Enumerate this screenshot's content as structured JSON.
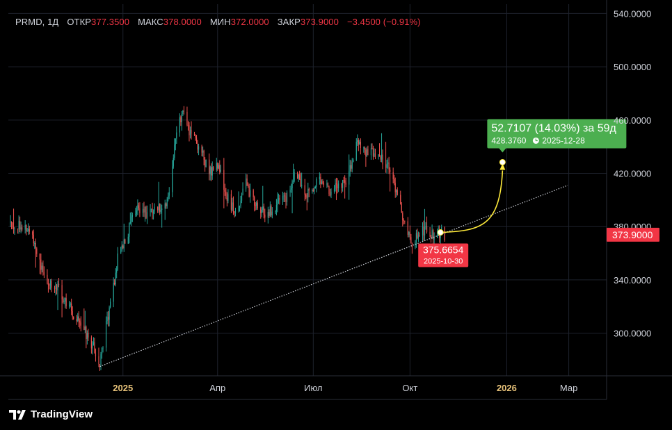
{
  "legend": {
    "symbol": "PRMD, 1Д",
    "open_label": "ОТКР",
    "open": "377.3500",
    "high_label": "МАКС",
    "high": "378.0000",
    "low_label": "МИН",
    "low": "372.0000",
    "close_label": "ЗАКР",
    "close": "373.9000",
    "change": "−3.4500 (−0.91%)"
  },
  "branding": {
    "name": "TradingView"
  },
  "colors": {
    "background": "#000000",
    "up": "#26a69a",
    "down": "#ef5350",
    "grid": "#1e222d",
    "axis_text": "#d1d4dc",
    "year_text": "#e8c37a",
    "last_price_bg": "#f23645",
    "forecast_bg": "#4caf50",
    "forecast_line": "#ffeb3b",
    "trendline": "#d1d4dc"
  },
  "chart_data": {
    "type": "candlestick",
    "y_axis": {
      "range": [
        268,
        547
      ],
      "ticks": [
        "540.0000",
        "500.0000",
        "460.0000",
        "420.0000",
        "380.0000",
        "340.0000",
        "300.0000"
      ],
      "tick_values": [
        540,
        500,
        460,
        420,
        380,
        340,
        300
      ]
    },
    "x_axis": {
      "range": [
        "2024-09-14",
        "2026-04-06"
      ],
      "ticks": [
        {
          "label": "2025",
          "date": "2025-01-01",
          "year": true
        },
        {
          "label": "Апр",
          "date": "2025-04-01",
          "year": false
        },
        {
          "label": "Июл",
          "date": "2025-07-01",
          "year": false
        },
        {
          "label": "Окт",
          "date": "2025-10-01",
          "year": false
        },
        {
          "label": "2026",
          "date": "2026-01-01",
          "year": true
        },
        {
          "label": "Мар",
          "date": "2026-03-01",
          "year": false
        }
      ]
    },
    "price_path": [
      [
        "2024-09-14",
        383
      ],
      [
        "2024-09-25",
        382
      ],
      [
        "2024-10-08",
        372
      ],
      [
        "2024-10-18",
        340
      ],
      [
        "2024-10-30",
        336
      ],
      [
        "2024-11-12",
        318
      ],
      [
        "2024-11-25",
        302
      ],
      [
        "2024-12-05",
        288
      ],
      [
        "2024-12-10",
        275
      ],
      [
        "2024-12-14",
        296
      ],
      [
        "2024-12-19",
        318
      ],
      [
        "2024-12-24",
        340
      ],
      [
        "2024-12-28",
        362
      ],
      [
        "2025-01-04",
        372
      ],
      [
        "2025-01-14",
        395
      ],
      [
        "2025-01-24",
        390
      ],
      [
        "2025-02-05",
        395
      ],
      [
        "2025-02-14",
        402
      ],
      [
        "2025-02-20",
        445
      ],
      [
        "2025-02-27",
        470
      ],
      [
        "2025-03-06",
        450
      ],
      [
        "2025-03-15",
        440
      ],
      [
        "2025-03-24",
        420
      ],
      [
        "2025-04-02",
        428
      ],
      [
        "2025-04-10",
        402
      ],
      [
        "2025-04-18",
        392
      ],
      [
        "2025-04-28",
        412
      ],
      [
        "2025-05-10",
        390
      ],
      [
        "2025-05-22",
        392
      ],
      [
        "2025-06-05",
        402
      ],
      [
        "2025-06-15",
        420
      ],
      [
        "2025-06-25",
        405
      ],
      [
        "2025-07-05",
        414
      ],
      [
        "2025-07-15",
        408
      ],
      [
        "2025-07-25",
        410
      ],
      [
        "2025-08-03",
        415
      ],
      [
        "2025-08-10",
        442
      ],
      [
        "2025-08-18",
        438
      ],
      [
        "2025-08-25",
        435
      ],
      [
        "2025-09-03",
        432
      ],
      [
        "2025-09-11",
        424
      ],
      [
        "2025-09-19",
        402
      ],
      [
        "2025-09-26",
        382
      ],
      [
        "2025-10-03",
        368
      ],
      [
        "2025-10-10",
        375
      ],
      [
        "2025-10-17",
        377
      ],
      [
        "2025-10-24",
        372
      ],
      [
        "2025-10-30",
        375.66
      ],
      [
        "2025-11-03",
        374
      ]
    ],
    "last_price": {
      "value": "373.9000",
      "y": 373.9
    },
    "trendline": {
      "from": {
        "date": "2024-12-10",
        "value": 275
      },
      "to": {
        "date": "2026-02-28",
        "value": 411
      }
    },
    "forecast": {
      "from_value": "375.6654",
      "from_date": "2025-10-30",
      "from": {
        "date": "2025-10-30",
        "y": 375.6654
      },
      "to": {
        "date": "2025-12-28",
        "y": 428.376
      },
      "change": "52.7107 (14.03%) за 59д",
      "target": "428.3760",
      "target_date": "2025-12-28"
    }
  }
}
